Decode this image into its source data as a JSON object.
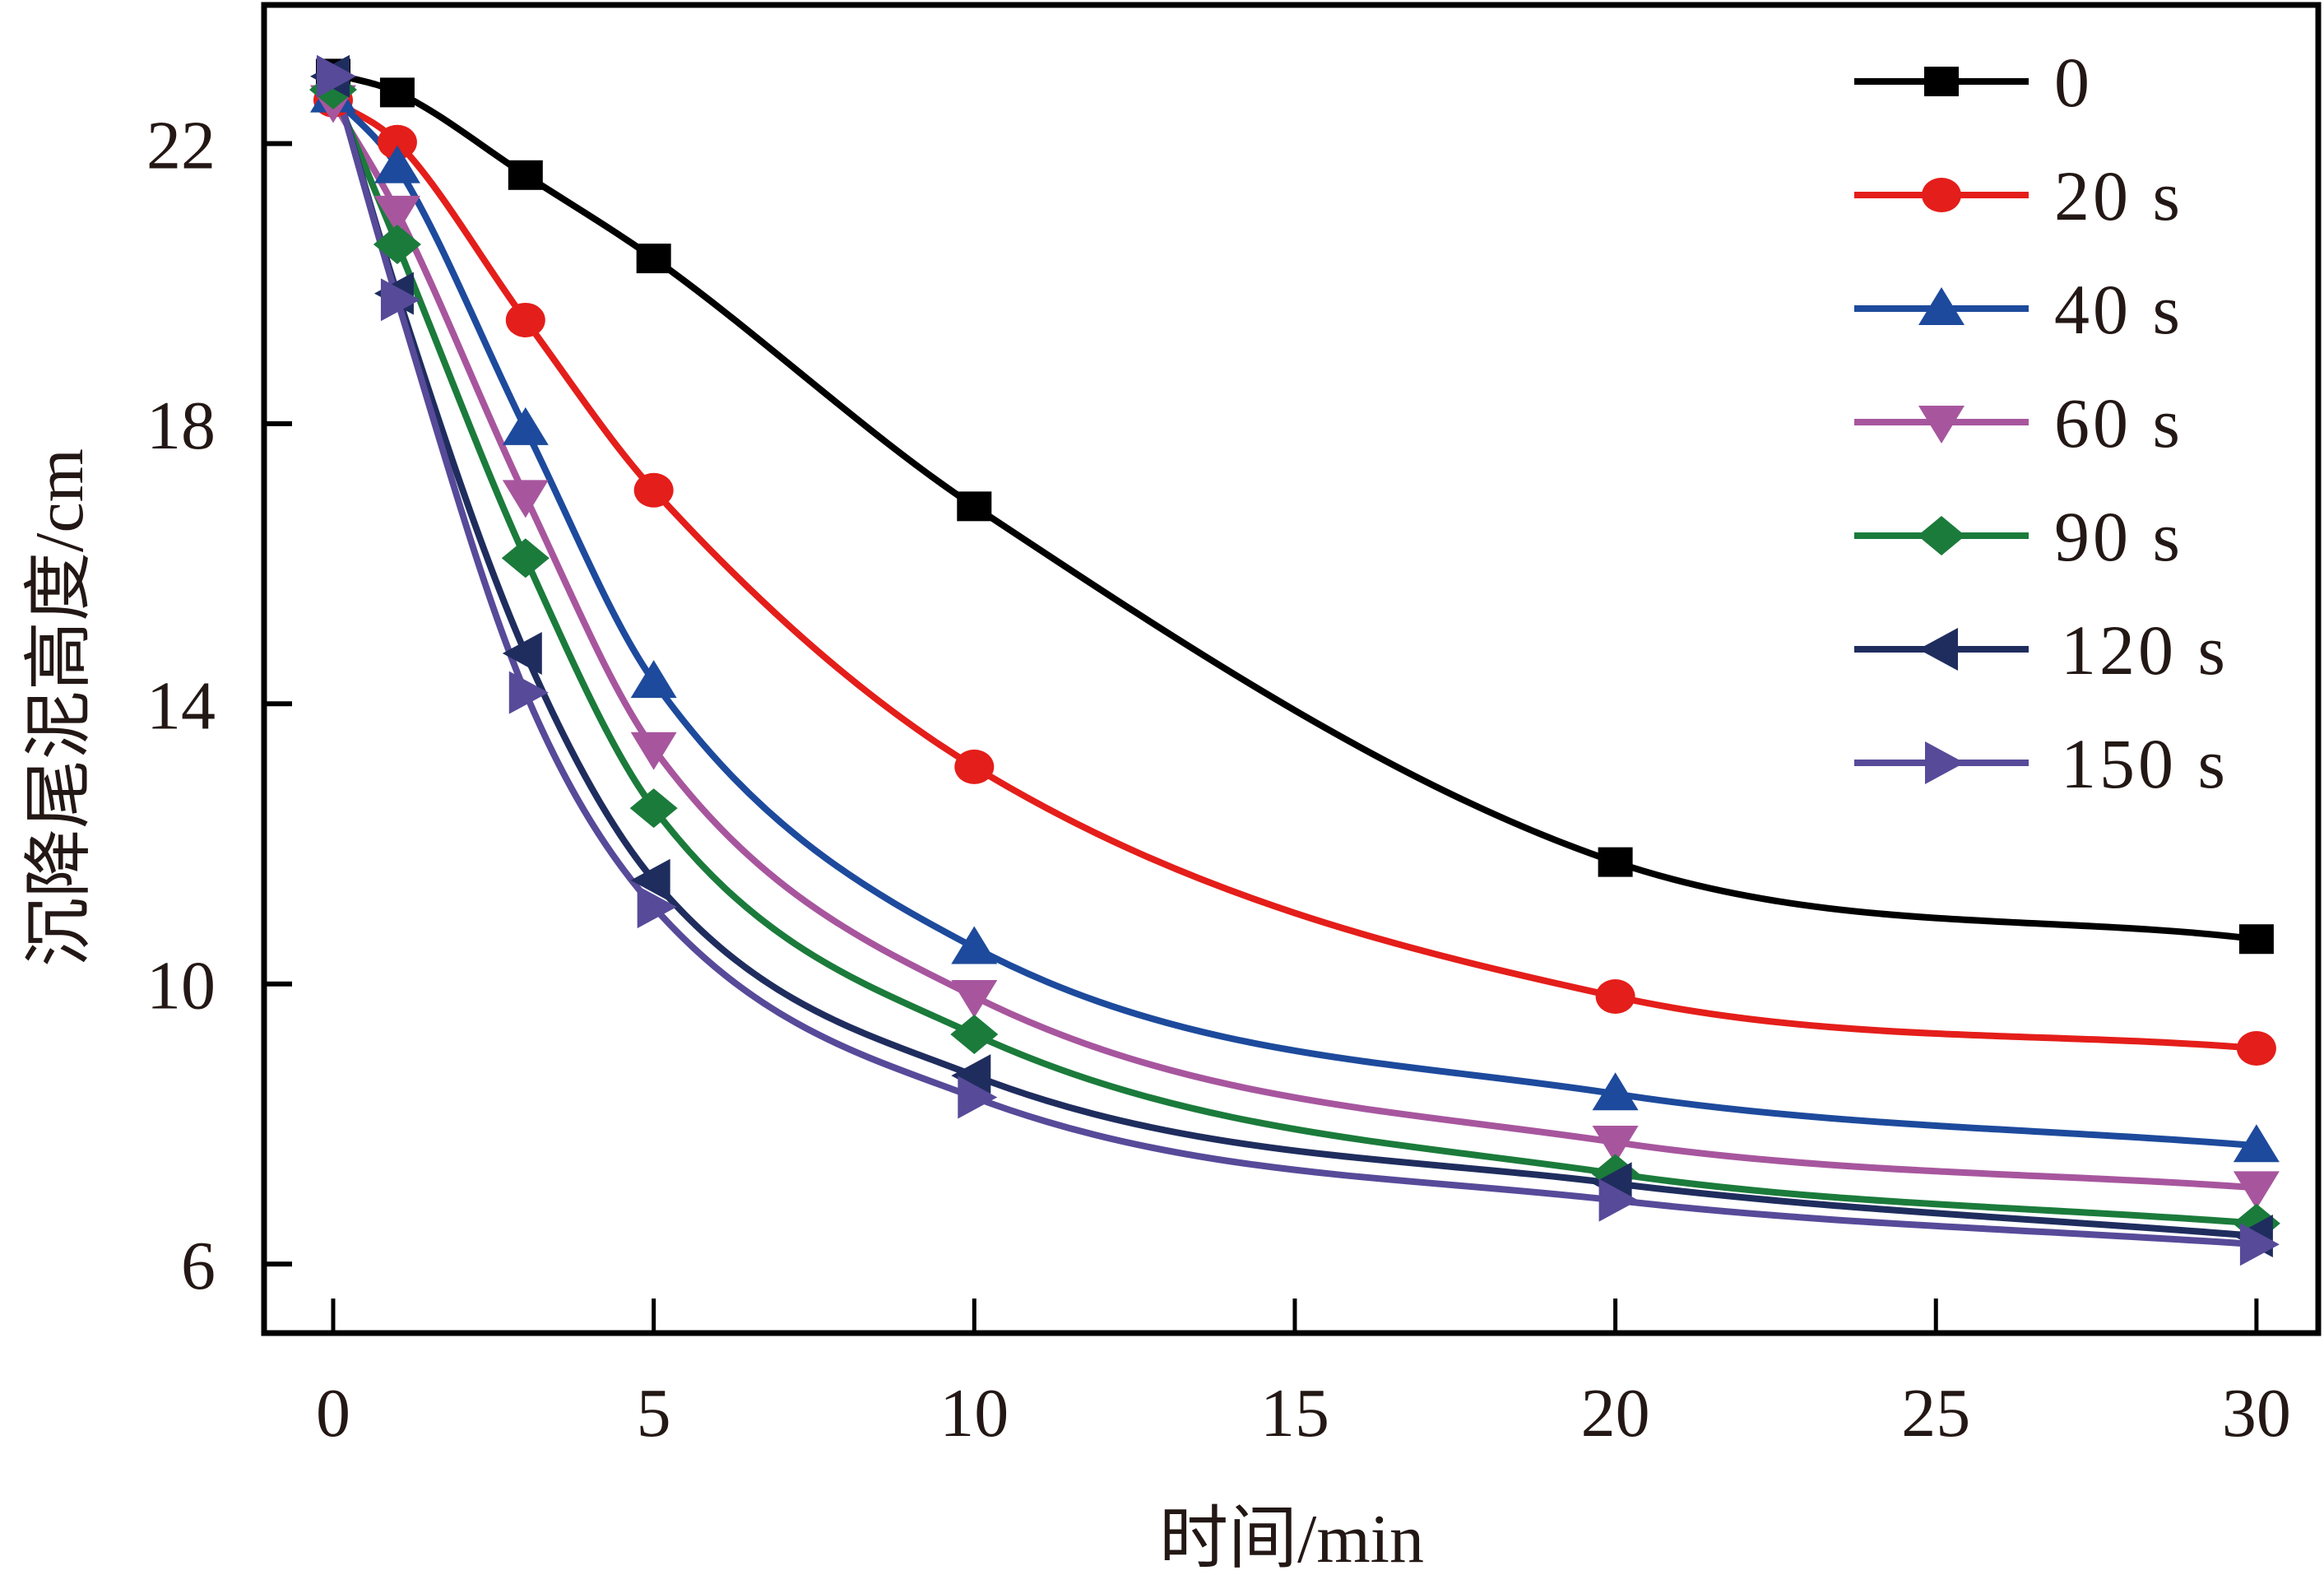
{
  "chart_data": {
    "type": "line",
    "title": "",
    "xlabel": "时间/min",
    "ylabel": "沉降尾泥高度/cm",
    "xlim": [
      -1,
      31
    ],
    "ylim": [
      5,
      23.5
    ],
    "xticks": [
      0,
      5,
      10,
      15,
      20,
      25,
      30
    ],
    "xtick_labels": [
      "0",
      "5",
      "10",
      "15",
      "20",
      "25",
      "30"
    ],
    "yticks": [
      6,
      10,
      14,
      18,
      22
    ],
    "ytick_labels": [
      "6",
      "10",
      "14",
      "18",
      "22"
    ],
    "grid": false,
    "legend_position": "top-right",
    "x": [
      0,
      1,
      3,
      5,
      10,
      20,
      30
    ],
    "series": [
      {
        "name": "0",
        "color": "#000000",
        "marker": "square",
        "values": [
          23.0,
          22.73,
          21.55,
          20.36,
          16.82,
          11.74,
          10.64
        ]
      },
      {
        "name": "20 s",
        "color": "#E41E1A",
        "marker": "circle",
        "values": [
          22.62,
          22.02,
          19.48,
          17.05,
          13.1,
          9.82,
          9.08
        ]
      },
      {
        "name": "40 s",
        "color": "#1D4A9C",
        "marker": "triangle-up",
        "values": [
          22.68,
          21.67,
          17.93,
          14.32,
          10.52,
          8.43,
          7.69
        ]
      },
      {
        "name": "60 s",
        "color": "#A7569E",
        "marker": "triangle-down",
        "values": [
          22.6,
          21.02,
          16.96,
          13.36,
          9.82,
          7.74,
          7.09
        ]
      },
      {
        "name": "90 s",
        "color": "#1B7B3B",
        "marker": "diamond",
        "values": [
          22.77,
          20.56,
          16.08,
          12.51,
          9.28,
          7.29,
          6.58
        ]
      },
      {
        "name": "120 s",
        "color": "#1F2D5E",
        "marker": "triangle-left",
        "values": [
          22.96,
          19.86,
          14.72,
          11.48,
          8.69,
          7.15,
          6.4
        ]
      },
      {
        "name": "150 s",
        "color": "#574A99",
        "marker": "triangle-right",
        "values": [
          22.96,
          19.77,
          14.16,
          11.1,
          8.38,
          6.91,
          6.28
        ]
      }
    ]
  }
}
